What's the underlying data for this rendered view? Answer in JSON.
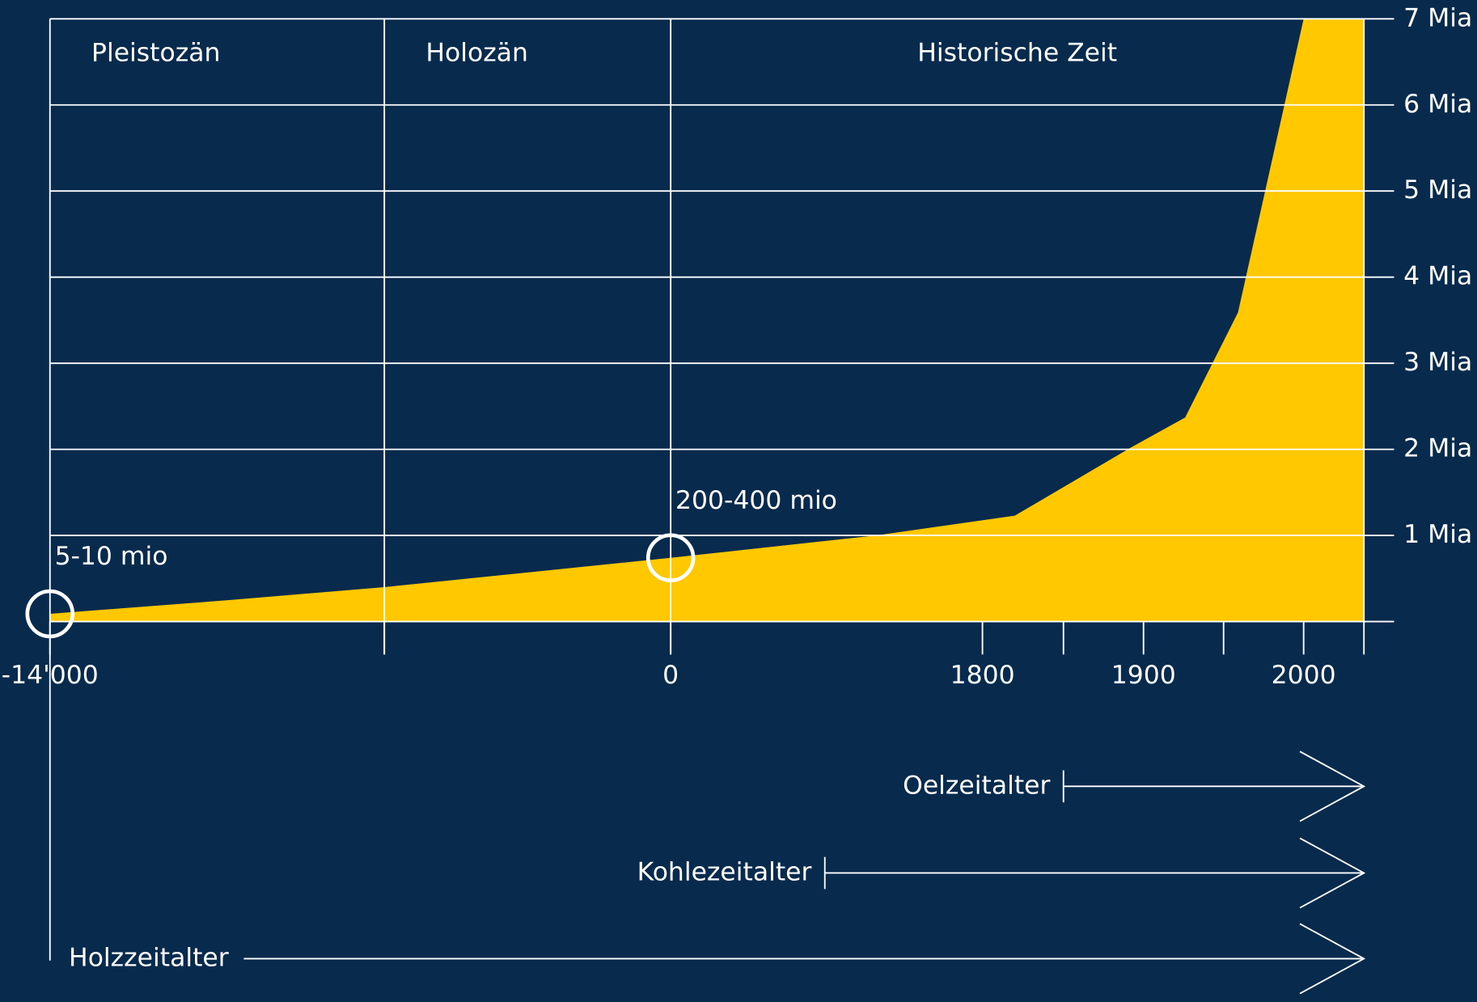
{
  "chart_data": {
    "type": "area",
    "color": "#ffc800",
    "x": [
      -14000,
      -11840,
      -10000,
      0,
      1185,
      1820,
      1892,
      1926,
      1959,
      2000,
      2020
    ],
    "values": [
      0.09,
      0.25,
      0.4,
      0.74,
      1.0,
      1.23,
      2.02,
      2.37,
      3.59,
      7,
      7
    ],
    "ylim": [
      0,
      7
    ],
    "yticks": [
      {
        "value": 1,
        "label": "1 Mia"
      },
      {
        "value": 2,
        "label": "2 Mia"
      },
      {
        "value": 3,
        "label": "3 Mia"
      },
      {
        "value": 4,
        "label": "4 Mia"
      },
      {
        "value": 5,
        "label": "5 Mia"
      },
      {
        "value": 6,
        "label": "6 Mia"
      },
      {
        "value": 7,
        "label": "7 Mia"
      }
    ],
    "xticks": [
      {
        "value": -14000,
        "label": "-14'000"
      },
      0,
      1800,
      1900,
      2000
    ],
    "minor_xticks": [
      -10000,
      1850,
      1950,
      2020
    ],
    "grid": true,
    "eras": [
      {
        "label": "Pleistozän",
        "start": -14000
      },
      {
        "label": "Holozän",
        "start": -10000
      },
      {
        "label": "Historische Zeit",
        "start": 0
      }
    ],
    "annotations": [
      {
        "text": "5-10 mio",
        "x": -14000,
        "y": 0.09
      },
      {
        "text": "200-400 mio",
        "x": 0,
        "y": 0.74
      }
    ],
    "periods": [
      {
        "label": "Oelzeitalter",
        "start": 1850
      },
      {
        "label": "Kohlezeitalter",
        "start": 890
      },
      {
        "label": "Holzzeitalter",
        "start": -14000
      }
    ]
  }
}
